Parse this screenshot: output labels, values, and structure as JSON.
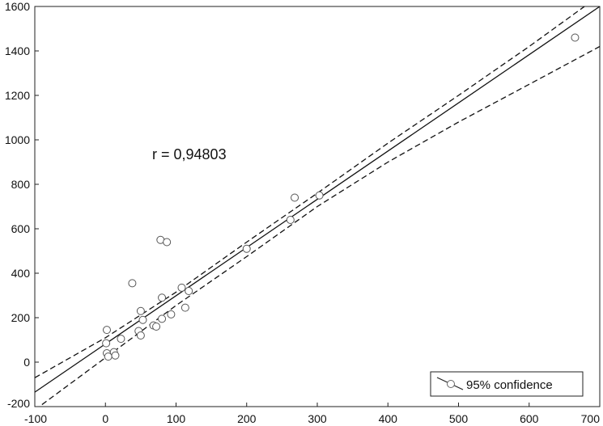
{
  "chart_data": {
    "type": "scatter",
    "xlim": [
      -100,
      700
    ],
    "ylim": [
      -200,
      1600
    ],
    "x_ticks": [
      -100,
      0,
      100,
      200,
      300,
      400,
      500,
      600,
      700
    ],
    "y_ticks": [
      -200,
      0,
      200,
      400,
      600,
      800,
      1000,
      1200,
      1400,
      1600
    ],
    "grid": false,
    "annotation": "r = 0,94803",
    "legend": {
      "label": "95% confidence",
      "position": "bottom-right"
    },
    "points": [
      {
        "x": 2,
        "y": 145
      },
      {
        "x": 1,
        "y": 85
      },
      {
        "x": 2,
        "y": 40
      },
      {
        "x": 4,
        "y": 25
      },
      {
        "x": 12,
        "y": 45
      },
      {
        "x": 14,
        "y": 30
      },
      {
        "x": 22,
        "y": 105
      },
      {
        "x": 38,
        "y": 355
      },
      {
        "x": 47,
        "y": 140
      },
      {
        "x": 50,
        "y": 230
      },
      {
        "x": 50,
        "y": 120
      },
      {
        "x": 53,
        "y": 190
      },
      {
        "x": 68,
        "y": 165
      },
      {
        "x": 72,
        "y": 160
      },
      {
        "x": 78,
        "y": 550
      },
      {
        "x": 80,
        "y": 290
      },
      {
        "x": 80,
        "y": 195
      },
      {
        "x": 87,
        "y": 540
      },
      {
        "x": 93,
        "y": 215
      },
      {
        "x": 108,
        "y": 335
      },
      {
        "x": 113,
        "y": 245
      },
      {
        "x": 118,
        "y": 320
      },
      {
        "x": 200,
        "y": 510
      },
      {
        "x": 262,
        "y": 640
      },
      {
        "x": 268,
        "y": 740
      },
      {
        "x": 303,
        "y": 750
      },
      {
        "x": 665,
        "y": 1460
      }
    ],
    "fit_line": {
      "x": [
        -100,
        700
      ],
      "y": [
        -135,
        1600
      ]
    },
    "ci_upper": {
      "x": [
        -100,
        0,
        100,
        200,
        300,
        400,
        500,
        600,
        700
      ],
      "y": [
        -70,
        110,
        315,
        540,
        760,
        985,
        1200,
        1420,
        1650
      ]
    },
    "ci_lower": {
      "x": [
        -100,
        0,
        100,
        200,
        300,
        400,
        500,
        600,
        700
      ],
      "y": [
        -215,
        20,
        255,
        475,
        700,
        900,
        1080,
        1250,
        1420
      ]
    }
  }
}
